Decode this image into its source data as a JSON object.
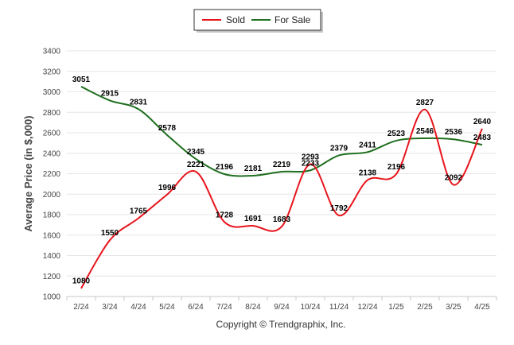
{
  "chart_data": {
    "type": "line",
    "categories": [
      "2/24",
      "3/24",
      "4/24",
      "5/24",
      "6/24",
      "7/24",
      "8/24",
      "9/24",
      "10/24",
      "11/24",
      "12/24",
      "1/25",
      "2/25",
      "3/25",
      "4/25"
    ],
    "series": [
      {
        "name": "Sold",
        "color": "#e8141c",
        "values": [
          1080,
          1550,
          1765,
          1996,
          2221,
          1728,
          1691,
          1683,
          2293,
          1792,
          2138,
          2196,
          2827,
          2092,
          2640
        ]
      },
      {
        "name": "For Sale",
        "color": "#1e6e1e",
        "values": [
          3051,
          2915,
          2831,
          2578,
          2345,
          2196,
          2181,
          2219,
          2233,
          2379,
          2411,
          2523,
          2546,
          2536,
          2483
        ]
      }
    ],
    "ylabel": "Average Price (in $,000)",
    "xlabel": "",
    "ylim": [
      1000,
      3400
    ],
    "yticks": [
      1000,
      1200,
      1400,
      1600,
      1800,
      2000,
      2200,
      2400,
      2600,
      2800,
      3000,
      3200,
      3400
    ],
    "grid": true,
    "legend_position": "top-center"
  },
  "footer": {
    "copyright": "Copyright © Trendgraphix, Inc."
  }
}
